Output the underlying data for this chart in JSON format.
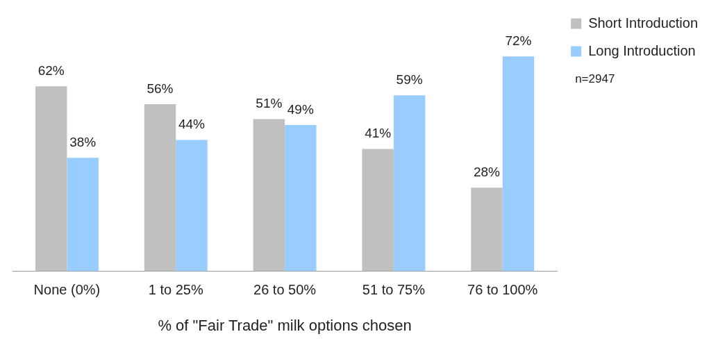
{
  "chart_data": {
    "type": "bar",
    "xlabel": "% of \"Fair Trade\" milk options chosen",
    "categories": [
      "None (0%)",
      "1 to 25%",
      "26 to 50%",
      "51 to 75%",
      "76 to 100%"
    ],
    "series": [
      {
        "name": "Short Introduction",
        "color": "#c0c0c0",
        "values": [
          62,
          56,
          51,
          41,
          28
        ],
        "value_labels": [
          "62%",
          "56%",
          "51%",
          "41%",
          "28%"
        ]
      },
      {
        "name": "Long Introduction",
        "color": "#99ccff",
        "values": [
          38,
          44,
          49,
          59,
          72
        ],
        "value_labels": [
          "38%",
          "44%",
          "49%",
          "59%",
          "72%"
        ]
      }
    ],
    "tick_labels": "x",
    "grid": false,
    "legend": "top right",
    "annotations": [
      "n=2947"
    ]
  }
}
